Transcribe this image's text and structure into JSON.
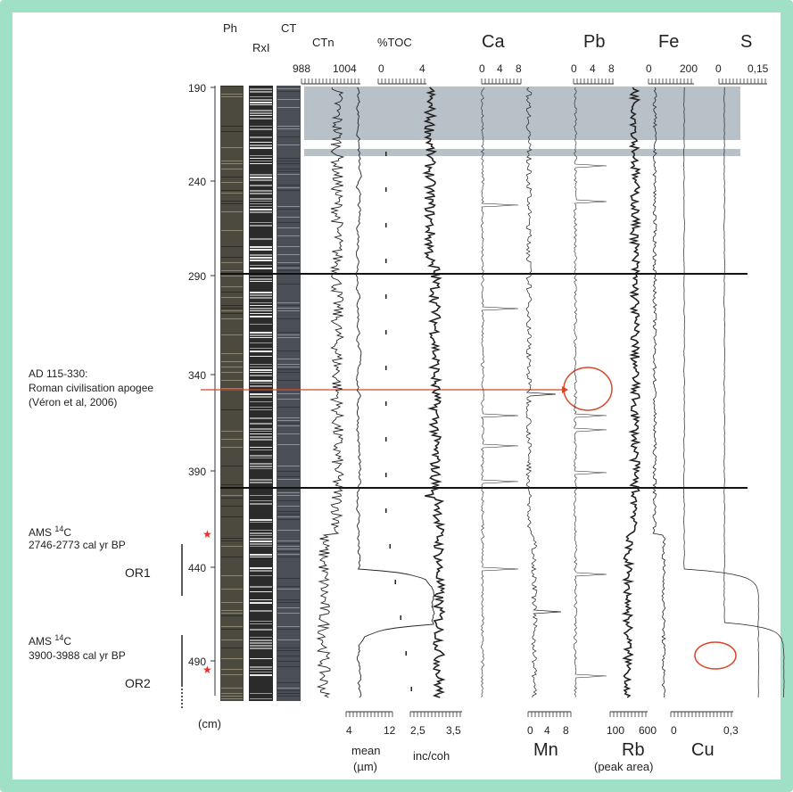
{
  "figure": {
    "top_column_labels": [
      "Ph",
      "RxI",
      "CT"
    ],
    "top_track_labels": [
      "CTn",
      "%TOC",
      "Ca",
      "Pb",
      "Fe",
      "S"
    ],
    "top_scales": {
      "ctn": [
        "988",
        "1004"
      ],
      "toc": [
        "0",
        "4"
      ],
      "ca": [
        "0",
        "4",
        "8"
      ],
      "pb": [
        "0",
        "4",
        "8"
      ],
      "fe": [
        "0",
        "200"
      ],
      "s": [
        "0",
        "0,15"
      ]
    },
    "depth_axis": {
      "ticks": [
        "190",
        "240",
        "290",
        "340",
        "390",
        "440",
        "490"
      ],
      "unit": "(cm)"
    },
    "bottom_scales": {
      "mean": [
        "4",
        "12"
      ],
      "inc_coh": [
        "2,5",
        "3,5"
      ],
      "mn": [
        "0",
        "4",
        "8"
      ],
      "rb": [
        "100",
        "600"
      ],
      "cu": [
        "0",
        "0,3"
      ]
    },
    "bottom_labels": {
      "mean": "mean",
      "mean_unit": "(µm)",
      "inc_coh": "inc/coh",
      "mn": "Mn",
      "rb": "Rb",
      "peak_area": "(peak area)",
      "cu": "Cu"
    },
    "annotations": {
      "roman_line1": "AD 115-330:",
      "roman_line2": "Roman civilisation apogee",
      "roman_line3": "(Véron et al, 2006)",
      "ams1_prefix": "AMS",
      "ams1_sup": "14",
      "ams1_suffix": "C",
      "ams1_age": "2746-2773 cal yr BP",
      "or1": "OR1",
      "ams2_prefix": "AMS",
      "ams2_sup": "14",
      "ams2_suffix": "C",
      "ams2_age": "3900-3988 cal yr BP",
      "or2": "OR2"
    },
    "colors": {
      "frame": "#9fe0c6",
      "highlight_band": "#b8c0c8",
      "annotation_red": "#d9472b",
      "star_red": "#e03030"
    }
  }
}
